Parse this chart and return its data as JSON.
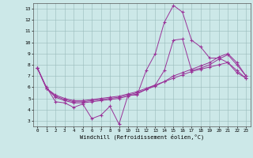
{
  "xlabel": "Windchill (Refroidissement éolien,°C)",
  "bg_color": "#cce8e8",
  "line_color": "#993399",
  "grid_color": "#99bbbb",
  "xlim_min": -0.5,
  "xlim_max": 23.5,
  "ylim_min": 2.5,
  "ylim_max": 13.5,
  "xticks": [
    0,
    1,
    2,
    3,
    4,
    5,
    6,
    7,
    8,
    9,
    10,
    11,
    12,
    13,
    14,
    15,
    16,
    17,
    18,
    19,
    20,
    21,
    22,
    23
  ],
  "yticks": [
    3,
    4,
    5,
    6,
    7,
    8,
    9,
    10,
    11,
    12,
    13
  ],
  "s1x": [
    0,
    1,
    2,
    3,
    4,
    5,
    6,
    7,
    8,
    9,
    10,
    11,
    12,
    13,
    14,
    15,
    16,
    17,
    18,
    19,
    20,
    21,
    22,
    23
  ],
  "s1y": [
    7.7,
    6.0,
    4.7,
    4.6,
    4.2,
    4.5,
    3.2,
    3.5,
    4.3,
    2.7,
    5.3,
    5.3,
    7.5,
    9.0,
    11.8,
    13.3,
    12.7,
    10.2,
    9.6,
    8.6,
    8.6,
    8.2,
    7.3,
    6.8
  ],
  "s2x": [
    0,
    1,
    2,
    3,
    4,
    5,
    6,
    7,
    8,
    9,
    10,
    11,
    12,
    13,
    14,
    15,
    16,
    17,
    18,
    19,
    20,
    21,
    22,
    23
  ],
  "s2y": [
    7.7,
    5.9,
    5.3,
    5.0,
    4.8,
    4.8,
    4.9,
    5.0,
    5.1,
    5.2,
    5.4,
    5.6,
    5.9,
    6.2,
    6.5,
    6.8,
    7.1,
    7.4,
    7.6,
    7.8,
    8.0,
    8.2,
    7.5,
    6.8
  ],
  "s3x": [
    0,
    1,
    2,
    3,
    4,
    5,
    6,
    7,
    8,
    9,
    10,
    11,
    12,
    13,
    14,
    15,
    16,
    17,
    18,
    19,
    20,
    21,
    22,
    23
  ],
  "s3y": [
    7.7,
    5.9,
    5.2,
    4.9,
    4.7,
    4.7,
    4.8,
    4.9,
    5.0,
    5.1,
    5.3,
    5.5,
    5.8,
    6.1,
    6.5,
    7.0,
    7.3,
    7.6,
    7.9,
    8.2,
    8.7,
    9.0,
    8.2,
    7.0
  ],
  "s4x": [
    0,
    1,
    2,
    3,
    4,
    5,
    6,
    7,
    8,
    9,
    10,
    11,
    12,
    13,
    14,
    15,
    16,
    17,
    18,
    19,
    20,
    21,
    22,
    23
  ],
  "s4y": [
    7.7,
    5.9,
    5.1,
    4.8,
    4.6,
    4.6,
    4.7,
    4.8,
    4.9,
    5.0,
    5.2,
    5.4,
    5.8,
    6.2,
    7.5,
    10.2,
    10.3,
    7.5,
    7.7,
    8.0,
    8.5,
    8.9,
    8.0,
    7.0
  ]
}
